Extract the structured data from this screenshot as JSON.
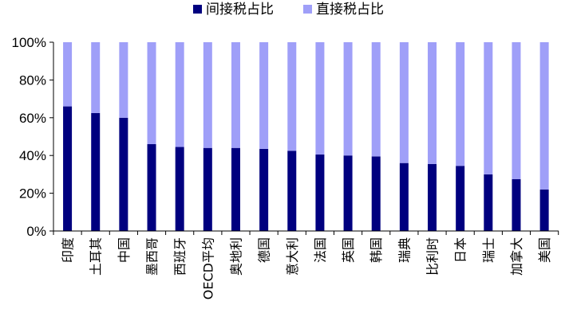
{
  "chart_data": {
    "type": "bar",
    "stacked": true,
    "percent_stacked": true,
    "categories": [
      "印度",
      "土耳其",
      "中国",
      "墨西哥",
      "西班牙",
      "OECD平均",
      "奥地利",
      "德国",
      "意大利",
      "法国",
      "英国",
      "韩国",
      "瑞典",
      "比利时",
      "日本",
      "瑞士",
      "加拿大",
      "美国"
    ],
    "series": [
      {
        "name": "间接税占比",
        "color": "#00007f",
        "values": [
          66,
          62.5,
          60,
          46,
          44.5,
          44,
          44,
          43.5,
          42.5,
          40.5,
          40,
          39.5,
          36,
          35.5,
          34.5,
          30,
          27.5,
          22
        ]
      },
      {
        "name": "直接税占比",
        "color": "#9f9ff8",
        "values": [
          34,
          37.5,
          40,
          54,
          55.5,
          56,
          56,
          56.5,
          57.5,
          59.5,
          60,
          60.5,
          64,
          64.5,
          65.5,
          70,
          72.5,
          78
        ]
      }
    ],
    "yticks": [
      "0%",
      "20%",
      "40%",
      "60%",
      "80%",
      "100%"
    ],
    "ylim": [
      0,
      100
    ],
    "grid": false,
    "legend_position": "top-center",
    "title": "",
    "xlabel": "",
    "ylabel": ""
  }
}
